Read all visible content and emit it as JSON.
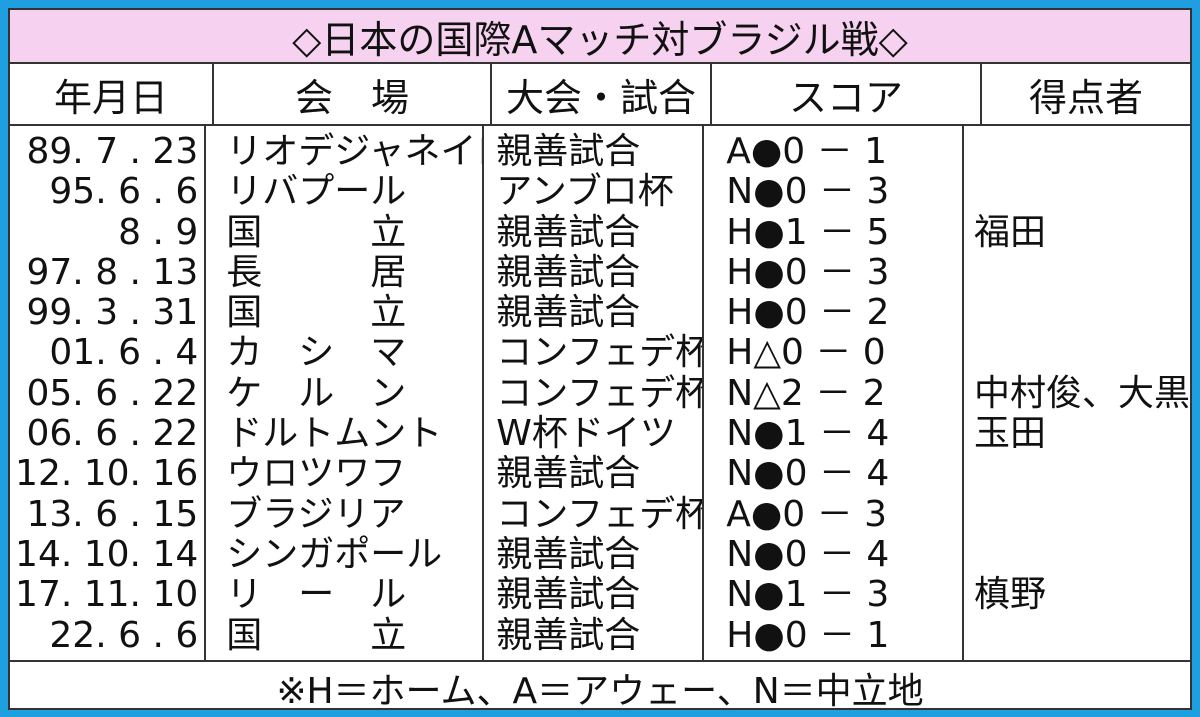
{
  "title": "◇日本の国際Aマッチ対ブラジル戦◇",
  "headers": [
    "年月日",
    "会　場",
    "大会・試合",
    "スコア",
    "得点者"
  ],
  "rows": [
    {
      "date": "89. 7 . 23",
      "venue": "リオデジャネイロ",
      "event": "親善試合",
      "score": "A●0 － 1",
      "scorers": ""
    },
    {
      "date": "95. 6 . 6",
      "venue": "リバプール",
      "event": "アンブロ杯",
      "score": "N●0 － 3",
      "scorers": ""
    },
    {
      "date": "8 . 9",
      "venue": "国　　　立",
      "event": "親善試合",
      "score": "H●1 － 5",
      "scorers": "福田"
    },
    {
      "date": "97. 8 . 13",
      "venue": "長　　　居",
      "event": "親善試合",
      "score": "H●0 － 3",
      "scorers": ""
    },
    {
      "date": "99. 3 . 31",
      "venue": "国　　　立",
      "event": "親善試合",
      "score": "H●0 － 2",
      "scorers": ""
    },
    {
      "date": "01. 6 . 4",
      "venue": "カ　シ　マ",
      "event": "コンフェデ杯",
      "score": "H△0 － 0",
      "scorers": ""
    },
    {
      "date": "05. 6 . 22",
      "venue": "ケ　ル　ン",
      "event": "コンフェデ杯",
      "score": "N△2 － 2",
      "scorers": "中村俊、大黒"
    },
    {
      "date": "06. 6 . 22",
      "venue": "ドルトムント",
      "event": "W杯ドイツ",
      "score": "N●1 － 4",
      "scorers": "玉田"
    },
    {
      "date": "12. 10. 16",
      "venue": "ウロツワフ",
      "event": "親善試合",
      "score": "N●0 － 4",
      "scorers": ""
    },
    {
      "date": "13. 6 . 15",
      "venue": "ブラジリア",
      "event": "コンフェデ杯",
      "score": "A●0 － 3",
      "scorers": ""
    },
    {
      "date": "14. 10. 14",
      "venue": "シンガポール",
      "event": "親善試合",
      "score": "N●0 － 4",
      "scorers": ""
    },
    {
      "date": "17. 11. 10",
      "venue": "リ　ー　ル",
      "event": "親善試合",
      "score": "N●1 － 3",
      "scorers": "槙野"
    },
    {
      "date": "22. 6 . 6",
      "venue": "国　　　立",
      "event": "親善試合",
      "score": "H●0 － 1",
      "scorers": ""
    }
  ],
  "footnote": "※H＝ホーム、A＝アウェー、N＝中立地",
  "colors": {
    "border": "#1ea0e0",
    "title_bg": "#f6d2f0"
  }
}
